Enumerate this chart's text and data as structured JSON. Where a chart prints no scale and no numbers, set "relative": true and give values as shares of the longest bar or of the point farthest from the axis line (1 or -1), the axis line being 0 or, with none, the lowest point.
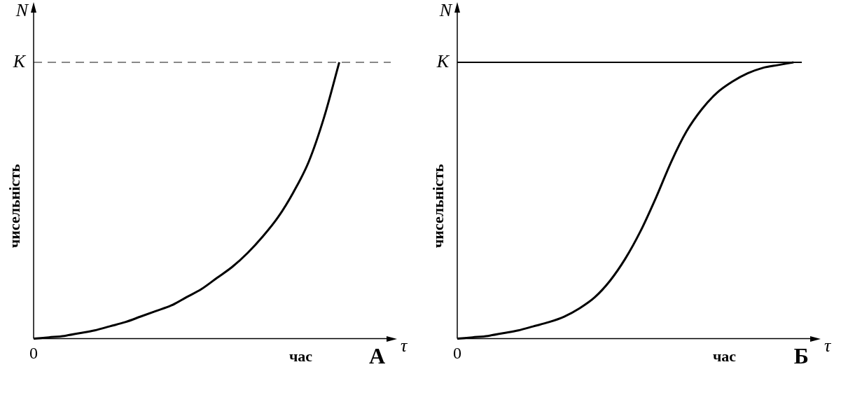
{
  "chart_data": [
    {
      "type": "line",
      "title": "А",
      "xlabel": "час",
      "ylabel": "чисельність",
      "annotations": [
        "N",
        "τ",
        "0"
      ],
      "relative": true,
      "categories": [
        null,
        null,
        null,
        null,
        null,
        null,
        null,
        null,
        null,
        null,
        null,
        null,
        null,
        null,
        null,
        null,
        null,
        null,
        null,
        null,
        null,
        null,
        null,
        null
      ],
      "series": [
        {
          "color": "#000000",
          "values": [
            0,
            0.005,
            0.01,
            0.02,
            0.03,
            0.045,
            0.06,
            0.08,
            0.1,
            0.12,
            0.15,
            0.18,
            0.22,
            0.26,
            0.31,
            0.37,
            0.44,
            0.53,
            0.64,
            0.8,
            1.0,
            null,
            null,
            null
          ]
        }
      ],
      "ref_lines": [
        {
          "axis": "y",
          "value": 1,
          "label": "K",
          "color": "#888888",
          "line_style": "dashed"
        }
      ],
      "legend": false,
      "marker": "none",
      "line_style": "solid"
    },
    {
      "type": "line",
      "title": "Б",
      "xlabel": "час",
      "ylabel": "чисельність",
      "annotations": [
        "N",
        "τ",
        "0"
      ],
      "relative": true,
      "categories": [
        null,
        null,
        null,
        null,
        null,
        null,
        null,
        null,
        null,
        null,
        null,
        null,
        null,
        null,
        null,
        null,
        null,
        null,
        null,
        null,
        null,
        null,
        null,
        null
      ],
      "series": [
        {
          "color": "#000000",
          "values": [
            0,
            0.005,
            0.01,
            0.02,
            0.03,
            0.045,
            0.06,
            0.08,
            0.11,
            0.15,
            0.21,
            0.29,
            0.39,
            0.51,
            0.64,
            0.75,
            0.83,
            0.89,
            0.93,
            0.96,
            0.98,
            0.99,
            1.0,
            null
          ]
        }
      ],
      "ref_lines": [
        {
          "axis": "y",
          "value": 1,
          "label": "K",
          "color": "#000000",
          "line_style": "solid"
        }
      ],
      "legend": false,
      "marker": "none",
      "line_style": "solid"
    }
  ]
}
